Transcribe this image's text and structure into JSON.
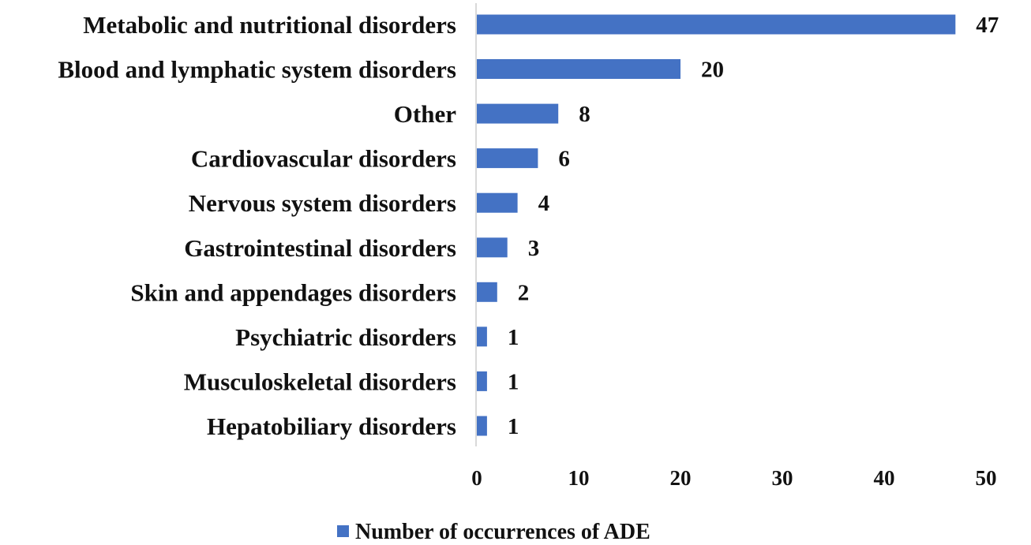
{
  "chart_data": {
    "type": "bar",
    "orientation": "horizontal",
    "categories": [
      "Metabolic and nutritional disorders",
      "Blood and lymphatic system disorders",
      "Other",
      "Cardiovascular disorders",
      "Nervous system disorders",
      "Gastrointestinal disorders",
      "Skin and appendages disorders",
      "Psychiatric disorders",
      "Musculoskeletal disorders",
      "Hepatobiliary disorders"
    ],
    "series": [
      {
        "name": "Number of occurrences of ADE",
        "values": [
          47,
          20,
          8,
          6,
          4,
          3,
          2,
          1,
          1,
          1
        ],
        "color": "#4472C4"
      }
    ],
    "xlim": [
      0,
      50
    ],
    "xticks": [
      "0",
      "10",
      "20",
      "30",
      "40",
      "50"
    ],
    "grid": false,
    "legend_position": "bottom-center",
    "axis_color": "#D9D9D9"
  }
}
